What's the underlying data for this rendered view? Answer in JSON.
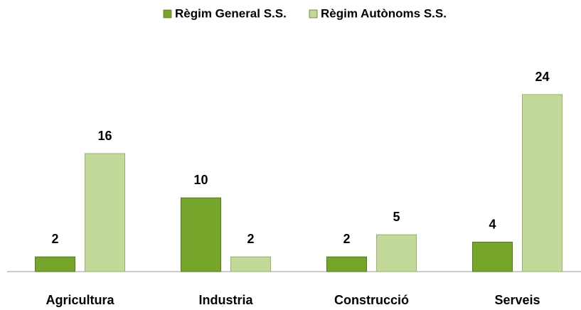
{
  "chart_data": {
    "type": "bar",
    "categories": [
      "Agricultura",
      "Industria",
      "Construcció",
      "Serveis"
    ],
    "series": [
      {
        "name": "Règim General S.S.",
        "color": "#76a52c",
        "values": [
          2,
          10,
          2,
          4
        ]
      },
      {
        "name": "Règim Autònoms S.S.",
        "color": "#c2d99a",
        "values": [
          16,
          2,
          5,
          24
        ]
      }
    ],
    "legend": "top"
  }
}
